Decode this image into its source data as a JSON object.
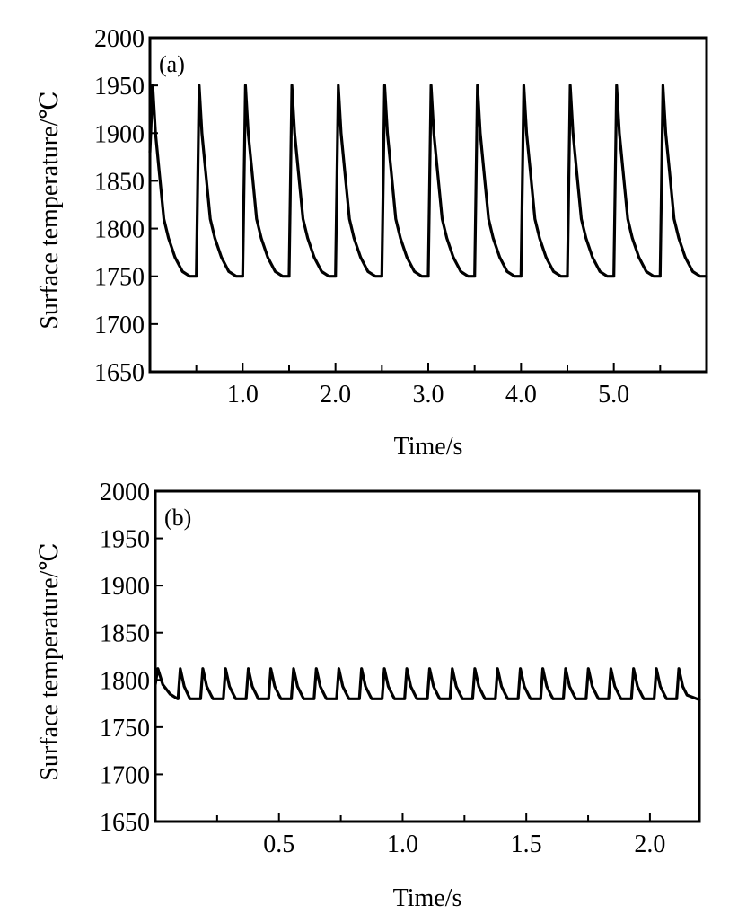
{
  "chart_data": [
    {
      "type": "line",
      "panel_label": "(a)",
      "xlabel": "Time/s",
      "ylabel": "Surface temperature/℃",
      "xlim": [
        0,
        6.0
      ],
      "ylim": [
        1650,
        2000
      ],
      "x_ticks": [
        0.5,
        1.0,
        1.5,
        2.0,
        2.5,
        3.0,
        3.5,
        4.0,
        4.5,
        5.0,
        5.5
      ],
      "x_tick_labels": [
        "1.0",
        "2.0",
        "3.0",
        "4.0",
        "5.0"
      ],
      "x_tick_label_values": [
        1.0,
        2.0,
        3.0,
        4.0,
        5.0
      ],
      "y_ticks": [
        1650,
        1700,
        1750,
        1800,
        1850,
        1900,
        1950,
        2000
      ],
      "y_tick_labels": [
        "1650",
        "1700",
        "1750",
        "1800",
        "1850",
        "1900",
        "1950",
        "2000"
      ],
      "grid": false,
      "series": [
        {
          "x": [
            0.0,
            0.03,
            0.06,
            0.1,
            0.15,
            0.2,
            0.27,
            0.35,
            0.43,
            0.5,
            0.53,
            0.56,
            0.6,
            0.65,
            0.7,
            0.77,
            0.85,
            0.93,
            1.0,
            1.03,
            1.06,
            1.1,
            1.15,
            1.2,
            1.27,
            1.35,
            1.43,
            1.5,
            1.53,
            1.56,
            1.6,
            1.65,
            1.7,
            1.77,
            1.85,
            1.93,
            2.0,
            2.03,
            2.06,
            2.1,
            2.15,
            2.2,
            2.27,
            2.35,
            2.43,
            2.5,
            2.53,
            2.56,
            2.6,
            2.65,
            2.7,
            2.77,
            2.85,
            2.93,
            3.0,
            3.03,
            3.06,
            3.1,
            3.15,
            3.2,
            3.27,
            3.35,
            3.43,
            3.5,
            3.53,
            3.56,
            3.6,
            3.65,
            3.7,
            3.77,
            3.85,
            3.93,
            4.0,
            4.03,
            4.06,
            4.1,
            4.15,
            4.2,
            4.27,
            4.35,
            4.43,
            4.5,
            4.53,
            4.56,
            4.6,
            4.65,
            4.7,
            4.77,
            4.85,
            4.93,
            5.0,
            5.03,
            5.06,
            5.1,
            5.15,
            5.2,
            5.27,
            5.35,
            5.43,
            5.5,
            5.53,
            5.56,
            5.6,
            5.65,
            5.7,
            5.77,
            5.85,
            5.93,
            6.0
          ],
          "y": [
            1880,
            1950,
            1900,
            1860,
            1810,
            1790,
            1770,
            1755,
            1750,
            1750,
            1950,
            1900,
            1860,
            1810,
            1790,
            1770,
            1755,
            1750,
            1750,
            1950,
            1900,
            1860,
            1810,
            1790,
            1770,
            1755,
            1750,
            1750,
            1950,
            1900,
            1860,
            1810,
            1790,
            1770,
            1755,
            1750,
            1750,
            1950,
            1900,
            1860,
            1810,
            1790,
            1770,
            1755,
            1750,
            1750,
            1950,
            1900,
            1860,
            1810,
            1790,
            1770,
            1755,
            1750,
            1750,
            1950,
            1900,
            1860,
            1810,
            1790,
            1770,
            1755,
            1750,
            1750,
            1950,
            1900,
            1860,
            1810,
            1790,
            1770,
            1755,
            1750,
            1750,
            1950,
            1900,
            1860,
            1810,
            1790,
            1770,
            1755,
            1750,
            1750,
            1950,
            1900,
            1860,
            1810,
            1790,
            1770,
            1755,
            1750,
            1750,
            1950,
            1900,
            1860,
            1810,
            1790,
            1770,
            1755,
            1750,
            1750,
            1950,
            1900,
            1860,
            1810,
            1790,
            1770,
            1755,
            1750,
            1750
          ]
        }
      ]
    },
    {
      "type": "line",
      "panel_label": "(b)",
      "xlabel": "Time/s",
      "ylabel": "Surface temperature/℃",
      "xlim": [
        0,
        2.2
      ],
      "ylim": [
        1650,
        2000
      ],
      "x_ticks": [
        0.25,
        0.5,
        0.75,
        1.0,
        1.25,
        1.5,
        1.75,
        2.0
      ],
      "x_tick_labels": [
        "0.5",
        "1.0",
        "1.5",
        "2.0"
      ],
      "x_tick_label_values": [
        0.5,
        1.0,
        1.5,
        2.0
      ],
      "y_ticks": [
        1650,
        1700,
        1750,
        1800,
        1850,
        1900,
        1950,
        2000
      ],
      "y_tick_labels": [
        "1650",
        "1700",
        "1750",
        "1800",
        "1850",
        "1900",
        "1950",
        "2000"
      ],
      "grid": false,
      "series": [
        {
          "x": [
            0.0,
            0.01,
            0.03,
            0.06,
            0.09,
            0.092,
            0.101,
            0.117,
            0.133,
            0.14,
            0.183,
            0.192,
            0.208,
            0.225,
            0.233,
            0.275,
            0.284,
            0.3,
            0.317,
            0.325,
            0.367,
            0.376,
            0.392,
            0.409,
            0.416,
            0.458,
            0.467,
            0.483,
            0.5,
            0.508,
            0.55,
            0.559,
            0.575,
            0.592,
            0.6,
            0.642,
            0.651,
            0.667,
            0.684,
            0.692,
            0.733,
            0.742,
            0.758,
            0.775,
            0.783,
            0.825,
            0.834,
            0.85,
            0.867,
            0.875,
            0.917,
            0.926,
            0.942,
            0.959,
            0.967,
            1.008,
            1.017,
            1.033,
            1.05,
            1.058,
            1.1,
            1.109,
            1.125,
            1.142,
            1.15,
            1.192,
            1.201,
            1.217,
            1.234,
            1.242,
            1.283,
            1.292,
            1.308,
            1.325,
            1.333,
            1.375,
            1.384,
            1.4,
            1.417,
            1.425,
            1.467,
            1.476,
            1.492,
            1.509,
            1.517,
            1.558,
            1.567,
            1.583,
            1.6,
            1.608,
            1.65,
            1.659,
            1.675,
            1.692,
            1.7,
            1.742,
            1.751,
            1.767,
            1.784,
            1.792,
            1.833,
            1.842,
            1.858,
            1.875,
            1.883,
            1.925,
            1.934,
            1.95,
            1.967,
            1.975,
            2.017,
            2.026,
            2.042,
            2.059,
            2.067,
            2.108,
            2.117,
            2.133,
            2.15,
            2.2
          ],
          "y": [
            1795,
            1812,
            1795,
            1785,
            1780,
            1780,
            1812,
            1793,
            1784,
            1780,
            1780,
            1812,
            1793,
            1784,
            1780,
            1780,
            1812,
            1793,
            1784,
            1780,
            1780,
            1812,
            1793,
            1784,
            1780,
            1780,
            1812,
            1793,
            1784,
            1780,
            1780,
            1812,
            1793,
            1784,
            1780,
            1780,
            1812,
            1793,
            1784,
            1780,
            1780,
            1812,
            1793,
            1784,
            1780,
            1780,
            1812,
            1793,
            1784,
            1780,
            1780,
            1812,
            1793,
            1784,
            1780,
            1780,
            1812,
            1793,
            1784,
            1780,
            1780,
            1812,
            1793,
            1784,
            1780,
            1780,
            1812,
            1793,
            1784,
            1780,
            1780,
            1812,
            1793,
            1784,
            1780,
            1780,
            1812,
            1793,
            1784,
            1780,
            1780,
            1812,
            1793,
            1784,
            1780,
            1780,
            1812,
            1793,
            1784,
            1780,
            1780,
            1812,
            1793,
            1784,
            1780,
            1780,
            1812,
            1793,
            1784,
            1780,
            1780,
            1812,
            1793,
            1784,
            1780,
            1780,
            1812,
            1793,
            1784,
            1780,
            1780,
            1812,
            1793,
            1784,
            1780,
            1780,
            1812,
            1793,
            1784,
            1779
          ]
        }
      ]
    }
  ]
}
